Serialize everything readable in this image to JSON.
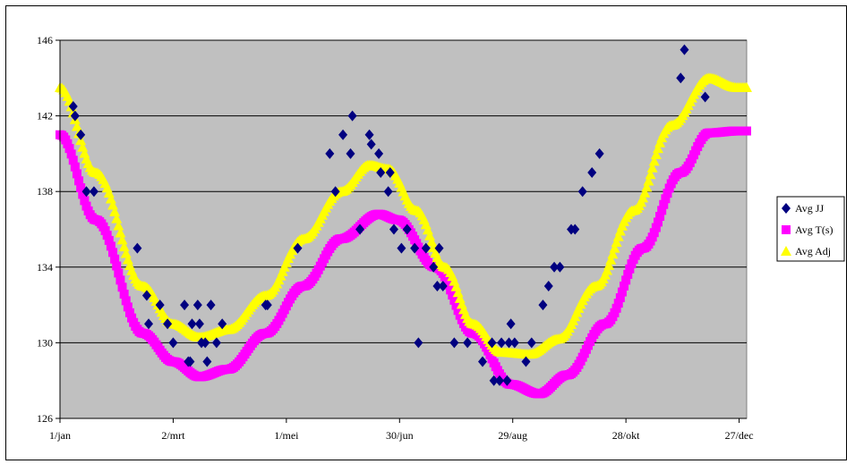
{
  "chart_data": {
    "type": "scatter",
    "xlim": [
      1,
      365
    ],
    "ylim": [
      126,
      146
    ],
    "y_ticks": [
      126,
      130,
      134,
      138,
      142,
      146
    ],
    "y_tick_labels": [
      "126",
      "130",
      "134",
      "138",
      "142",
      "146"
    ],
    "x_ticks": [
      1,
      61,
      121,
      181,
      241,
      301,
      361
    ],
    "x_tick_labels": [
      "1/jan",
      "2/mrt",
      "1/mei",
      "30/jun",
      "29/aug",
      "28/okt",
      "27/dec"
    ],
    "grid": "horizontal",
    "plot_background": "#c0c0c0",
    "legend_position": "right",
    "series": [
      {
        "name": "Avg JJ",
        "marker": "diamond",
        "color": "#000080",
        "points": [
          [
            8,
            142.5
          ],
          [
            9,
            142
          ],
          [
            12,
            141
          ],
          [
            15,
            138
          ],
          [
            19,
            138
          ],
          [
            42,
            135
          ],
          [
            47,
            132.5
          ],
          [
            48,
            131
          ],
          [
            54,
            132
          ],
          [
            58,
            131
          ],
          [
            61,
            130
          ],
          [
            67,
            132
          ],
          [
            69,
            129
          ],
          [
            70,
            129
          ],
          [
            71,
            131
          ],
          [
            74,
            132
          ],
          [
            75,
            131
          ],
          [
            76,
            130
          ],
          [
            78,
            130
          ],
          [
            79,
            129
          ],
          [
            81,
            132
          ],
          [
            84,
            130
          ],
          [
            87,
            131
          ],
          [
            110,
            132
          ],
          [
            111,
            132
          ],
          [
            127,
            135
          ],
          [
            144,
            140
          ],
          [
            147,
            138
          ],
          [
            151,
            141
          ],
          [
            155,
            140
          ],
          [
            156,
            142
          ],
          [
            160,
            136
          ],
          [
            165,
            141
          ],
          [
            166,
            140.5
          ],
          [
            170,
            140
          ],
          [
            171,
            139
          ],
          [
            175,
            138
          ],
          [
            176,
            139
          ],
          [
            178,
            136
          ],
          [
            182,
            135
          ],
          [
            185,
            136
          ],
          [
            189,
            135
          ],
          [
            191,
            130
          ],
          [
            195,
            135
          ],
          [
            199,
            134
          ],
          [
            201,
            133
          ],
          [
            202,
            135
          ],
          [
            204,
            133
          ],
          [
            210,
            130
          ],
          [
            217,
            130
          ],
          [
            225,
            129
          ],
          [
            230,
            130
          ],
          [
            231,
            128
          ],
          [
            234,
            128
          ],
          [
            235,
            130
          ],
          [
            238,
            128
          ],
          [
            239,
            130
          ],
          [
            240,
            131
          ],
          [
            242,
            130
          ],
          [
            248,
            129
          ],
          [
            251,
            130
          ],
          [
            257,
            132
          ],
          [
            260,
            133
          ],
          [
            263,
            134
          ],
          [
            266,
            134
          ],
          [
            272,
            136
          ],
          [
            274,
            136
          ],
          [
            278,
            138
          ],
          [
            283,
            139
          ],
          [
            287,
            140
          ],
          [
            330,
            144
          ],
          [
            332,
            145.5
          ],
          [
            343,
            143
          ]
        ]
      },
      {
        "name": "Avg T(s)",
        "marker": "square",
        "color": "#ff00ff",
        "curve": [
          [
            1,
            141
          ],
          [
            20,
            136.5
          ],
          [
            45,
            130.5
          ],
          [
            61,
            129
          ],
          [
            75,
            128.2
          ],
          [
            90,
            128.6
          ],
          [
            110,
            130.5
          ],
          [
            130,
            133
          ],
          [
            150,
            135.5
          ],
          [
            170,
            136.8
          ],
          [
            180,
            136.5
          ],
          [
            200,
            134
          ],
          [
            220,
            130.5
          ],
          [
            240,
            127.8
          ],
          [
            255,
            127.3
          ],
          [
            270,
            128.3
          ],
          [
            290,
            131
          ],
          [
            310,
            135
          ],
          [
            330,
            139
          ],
          [
            345,
            141.1
          ],
          [
            360,
            141.2
          ]
        ]
      },
      {
        "name": "Avg Adj",
        "marker": "triangle",
        "color": "#ffff00",
        "curve": [
          [
            1,
            143.5
          ],
          [
            20,
            139
          ],
          [
            45,
            133
          ],
          [
            61,
            131
          ],
          [
            75,
            130.3
          ],
          [
            90,
            130.7
          ],
          [
            110,
            132.5
          ],
          [
            130,
            135.5
          ],
          [
            150,
            138
          ],
          [
            165,
            139.4
          ],
          [
            175,
            139.2
          ],
          [
            190,
            137
          ],
          [
            205,
            134
          ],
          [
            220,
            131
          ],
          [
            235,
            129.5
          ],
          [
            250,
            129.4
          ],
          [
            265,
            130.2
          ],
          [
            285,
            133
          ],
          [
            305,
            137
          ],
          [
            325,
            141.5
          ],
          [
            345,
            144
          ],
          [
            360,
            143.5
          ]
        ]
      }
    ]
  }
}
